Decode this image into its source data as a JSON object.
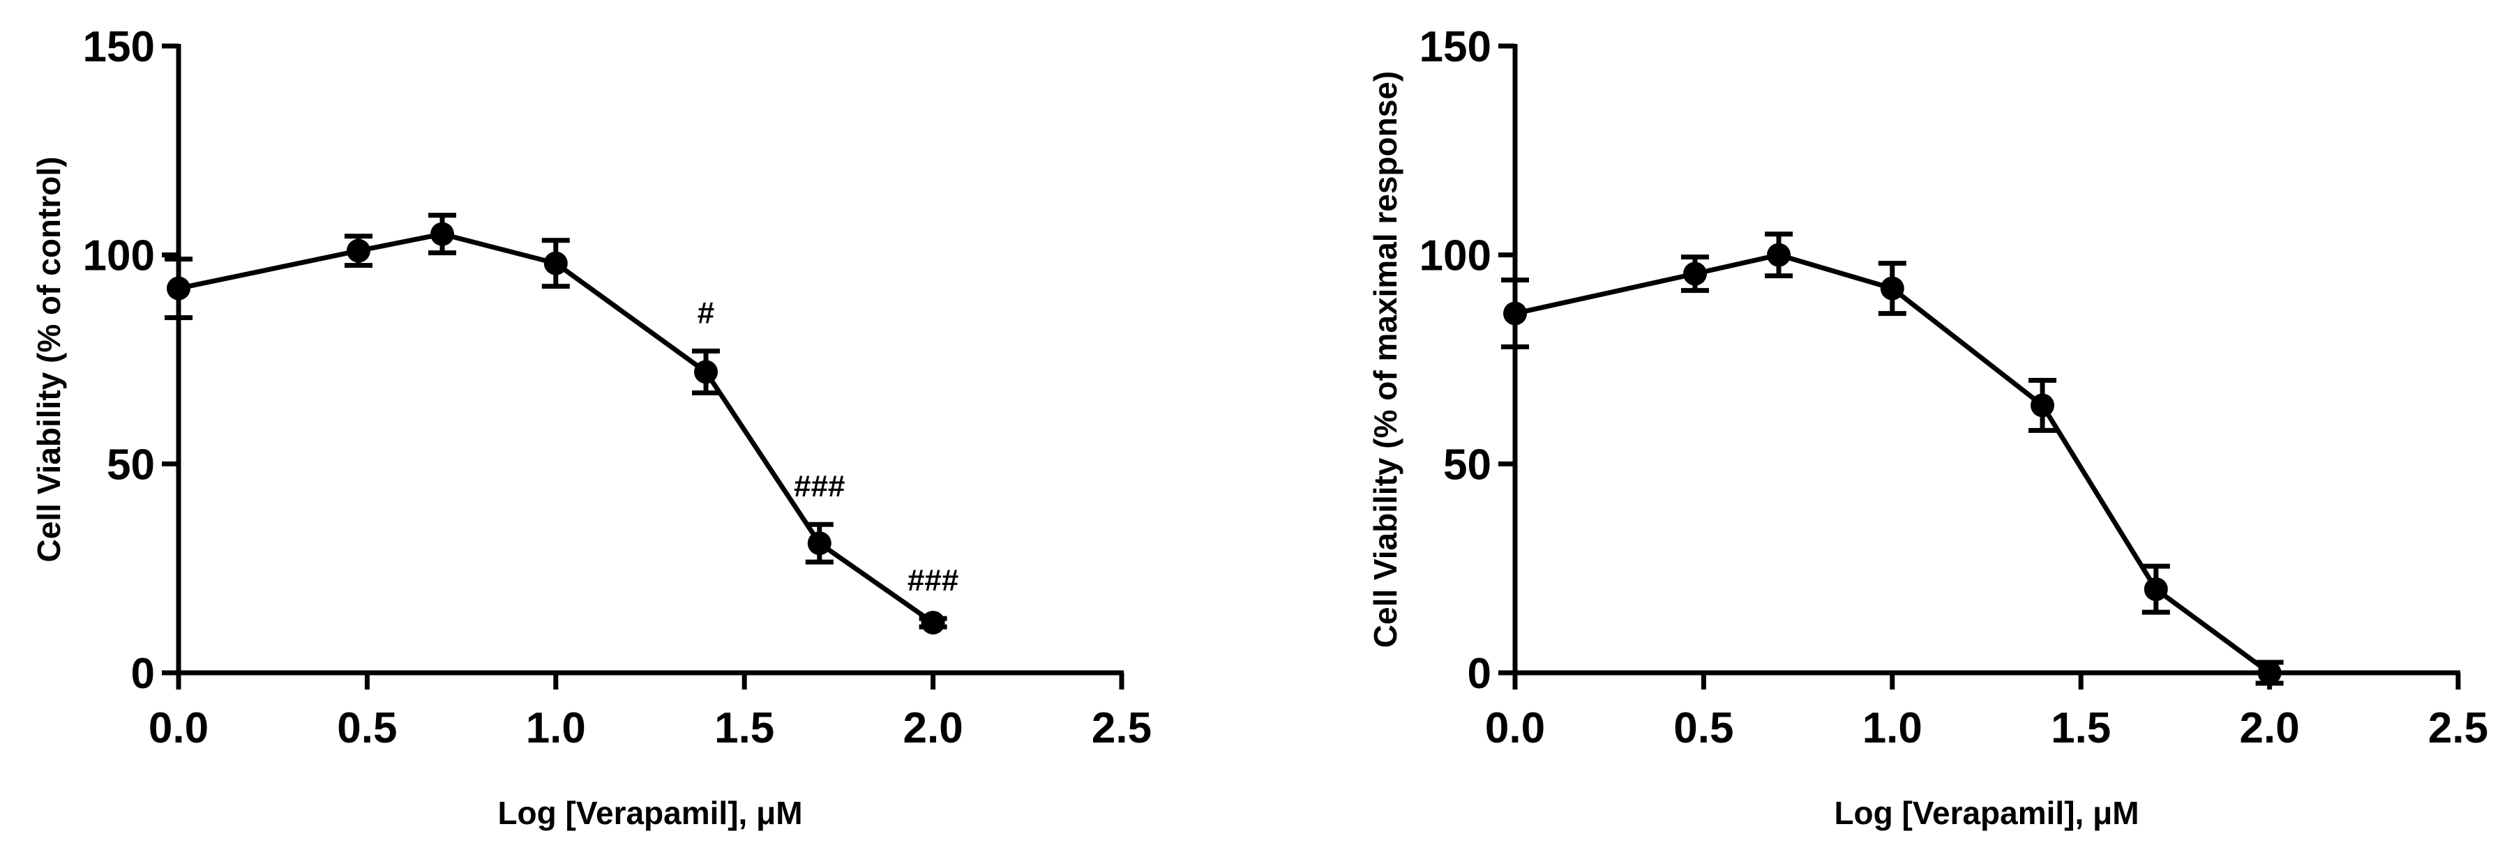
{
  "colors": {
    "foreground": "#000000",
    "background": "#ffffff"
  },
  "chart_data": [
    {
      "type": "line",
      "title": "",
      "xlabel": "Log [Verapamil], μM",
      "ylabel": "Cell Viability (% of control)",
      "xlim": [
        0,
        2.5
      ],
      "ylim": [
        0,
        150
      ],
      "xticks": [
        "0.0",
        "0.5",
        "1.0",
        "1.5",
        "2.0",
        "2.5"
      ],
      "yticks": [
        "0",
        "50",
        "100",
        "150"
      ],
      "grid": false,
      "series": [
        {
          "name": "Verapamil",
          "x": [
            0,
            0.477,
            0.699,
            1.0,
            1.398,
            1.699,
            2.0
          ],
          "y": [
            92,
            101,
            105,
            98,
            72,
            31,
            12
          ],
          "error": [
            7,
            3.5,
            4.5,
            5.5,
            5,
            4.5,
            1
          ]
        }
      ],
      "annotations": [
        {
          "x": 1.398,
          "label": "#"
        },
        {
          "x": 1.699,
          "label": "###"
        },
        {
          "x": 2.0,
          "label": "###"
        }
      ]
    },
    {
      "type": "line",
      "title": "",
      "xlabel": "Log [Verapamil], μM",
      "ylabel": "Cell Viability (% of maximal response)",
      "xlim": [
        0,
        2.5
      ],
      "ylim": [
        0,
        150
      ],
      "xticks": [
        "0.0",
        "0.5",
        "1.0",
        "1.5",
        "2.0",
        "2.5"
      ],
      "yticks": [
        "0",
        "50",
        "100",
        "150"
      ],
      "grid": false,
      "series": [
        {
          "name": "Verapamil",
          "x": [
            0,
            0.477,
            0.699,
            1.0,
            1.398,
            1.699,
            2.0
          ],
          "y": [
            86,
            95.5,
            100,
            92,
            64,
            20,
            0
          ],
          "error": [
            8,
            4,
            5,
            6,
            6,
            5.5,
            2.5
          ]
        }
      ],
      "annotations": []
    }
  ]
}
